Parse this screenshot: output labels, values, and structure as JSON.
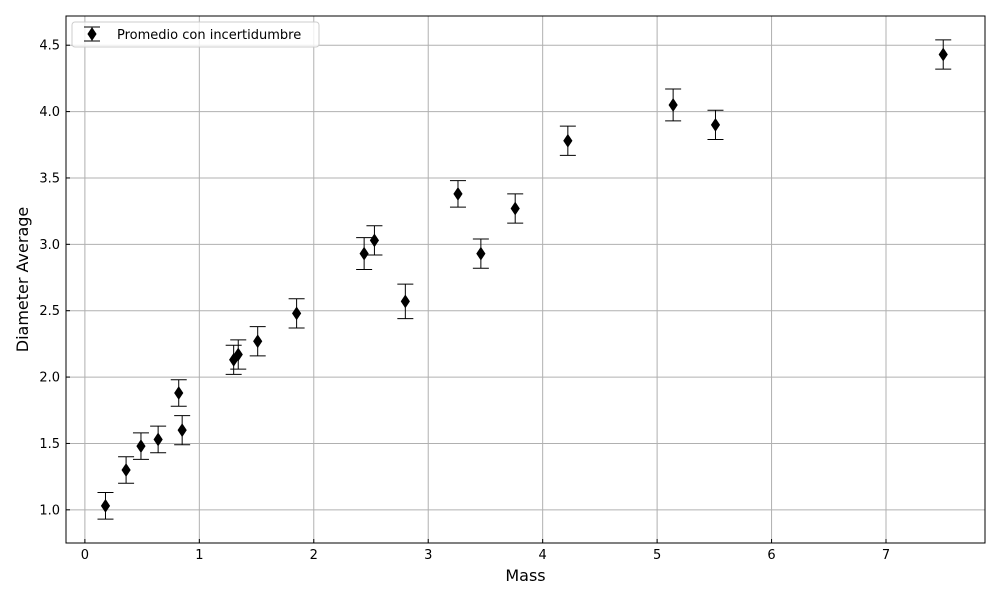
{
  "chart_data": {
    "type": "scatter",
    "title": "",
    "xlabel": "Mass",
    "ylabel": "Diameter Average",
    "xlim": [
      -0.165,
      7.865
    ],
    "ylim": [
      0.75,
      4.72
    ],
    "xticks": [
      0,
      1,
      2,
      3,
      4,
      5,
      6,
      7
    ],
    "yticks": [
      1.0,
      1.5,
      2.0,
      2.5,
      3.0,
      3.5,
      4.0,
      4.5
    ],
    "ytick_labels": [
      "1.0",
      "1.5",
      "2.0",
      "2.5",
      "3.0",
      "3.5",
      "4.0",
      "4.5"
    ],
    "grid": true,
    "legend_position": "top-left",
    "marker": "thin-diamond",
    "color": "#000000",
    "series": [
      {
        "name": "Promedio con incertidumbre",
        "points": [
          {
            "x": 0.18,
            "y": 1.03,
            "err": 0.1
          },
          {
            "x": 0.36,
            "y": 1.3,
            "err": 0.1
          },
          {
            "x": 0.49,
            "y": 1.48,
            "err": 0.1
          },
          {
            "x": 0.64,
            "y": 1.53,
            "err": 0.1
          },
          {
            "x": 0.82,
            "y": 1.88,
            "err": 0.1
          },
          {
            "x": 0.85,
            "y": 1.6,
            "err": 0.11
          },
          {
            "x": 1.3,
            "y": 2.13,
            "err": 0.11
          },
          {
            "x": 1.34,
            "y": 2.17,
            "err": 0.11
          },
          {
            "x": 1.51,
            "y": 2.27,
            "err": 0.11
          },
          {
            "x": 1.85,
            "y": 2.48,
            "err": 0.11
          },
          {
            "x": 2.44,
            "y": 2.93,
            "err": 0.12
          },
          {
            "x": 2.53,
            "y": 3.03,
            "err": 0.11
          },
          {
            "x": 2.8,
            "y": 2.57,
            "err": 0.13
          },
          {
            "x": 3.26,
            "y": 3.38,
            "err": 0.1
          },
          {
            "x": 3.46,
            "y": 2.93,
            "err": 0.11
          },
          {
            "x": 3.76,
            "y": 3.27,
            "err": 0.11
          },
          {
            "x": 4.22,
            "y": 3.78,
            "err": 0.11
          },
          {
            "x": 5.14,
            "y": 4.05,
            "err": 0.12
          },
          {
            "x": 5.51,
            "y": 3.9,
            "err": 0.11
          },
          {
            "x": 7.5,
            "y": 4.43,
            "err": 0.11
          }
        ]
      }
    ]
  }
}
